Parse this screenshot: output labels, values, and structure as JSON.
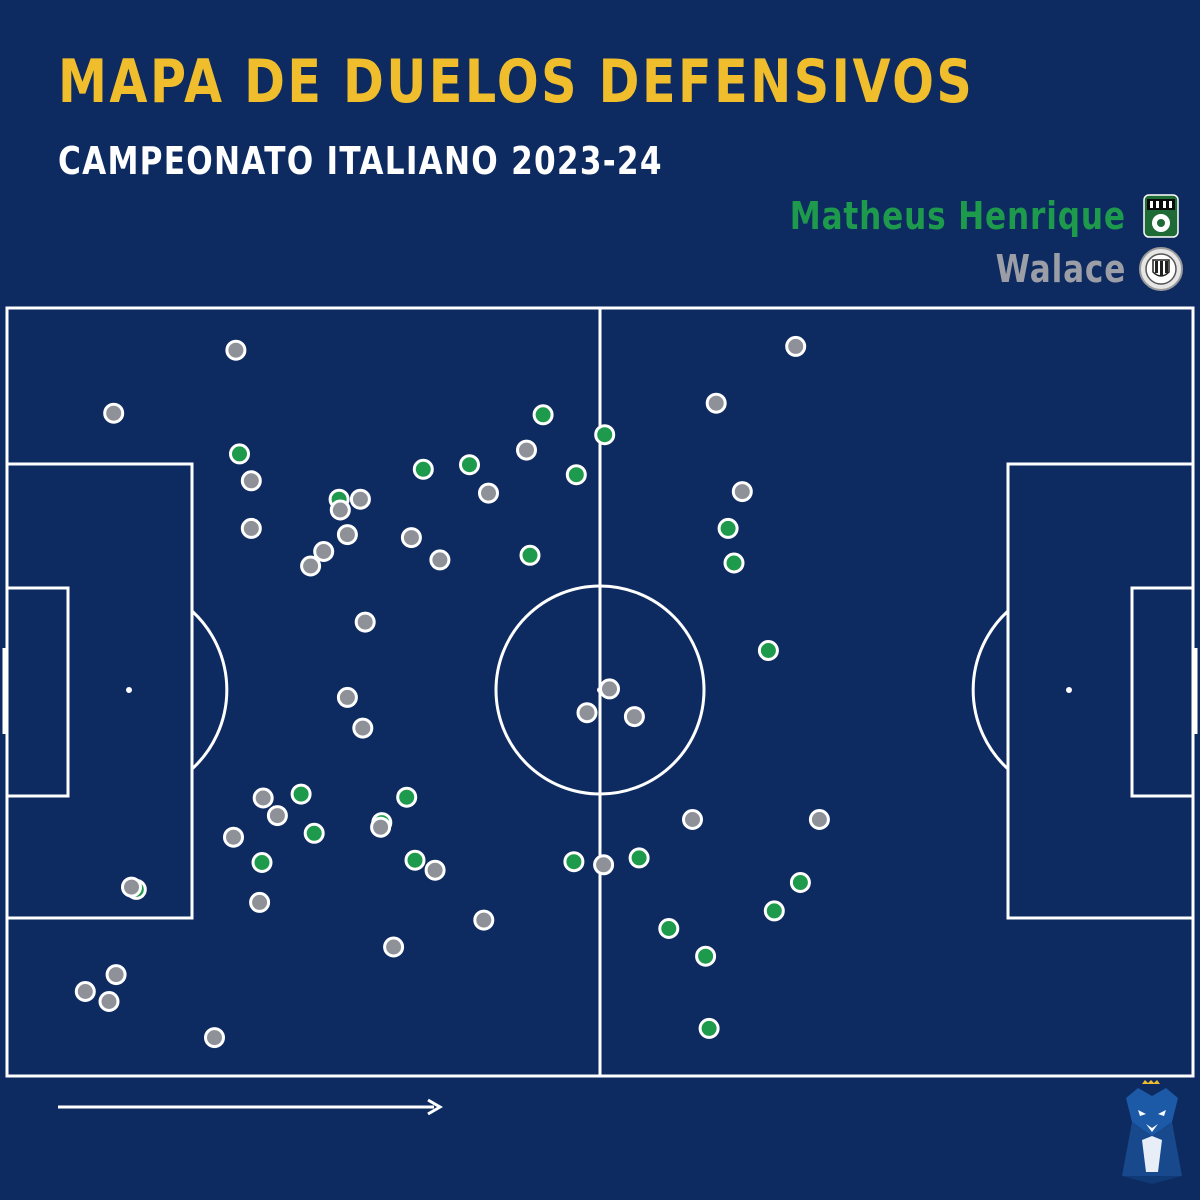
{
  "title": "MAPA DE DUELOS DEFENSIVOS",
  "subtitle": "CAMPEONATO ITALIANO 2023-24",
  "colors": {
    "background": "#0d2b60",
    "title": "#f0bd2c",
    "matheus": "#1e9a4c",
    "walace": "#8e9198",
    "lines": "#ffffff"
  },
  "icons": {
    "sassuolo_badge": "sassuolo-crest-icon",
    "udinese_badge": "udinese-crest-icon",
    "direction": "arrow-right-icon",
    "brand": "fox-mascot-icon"
  },
  "chart_data": {
    "type": "scatter",
    "title": "MAPA DE DUELOS DEFENSIVOS",
    "subtitle": "CAMPEONATO ITALIANO 2023-24",
    "legend_position": "top-right",
    "xlim": [
      0,
      100
    ],
    "ylim": [
      0,
      100
    ],
    "series": [
      {
        "name": "Matheus Henrique",
        "color": "#1e9a4c",
        "points": [
          [
            45.2,
            13.9
          ],
          [
            50.4,
            16.5
          ],
          [
            19.6,
            19.0
          ],
          [
            39.0,
            20.4
          ],
          [
            35.1,
            21.0
          ],
          [
            48.0,
            21.7
          ],
          [
            28.0,
            24.9
          ],
          [
            60.8,
            28.7
          ],
          [
            44.1,
            32.2
          ],
          [
            61.3,
            33.2
          ],
          [
            64.2,
            44.6
          ],
          [
            24.8,
            63.3
          ],
          [
            33.7,
            63.7
          ],
          [
            31.6,
            67.0
          ],
          [
            25.9,
            68.4
          ],
          [
            34.4,
            71.9
          ],
          [
            47.8,
            72.1
          ],
          [
            53.3,
            71.6
          ],
          [
            21.5,
            72.2
          ],
          [
            10.9,
            75.7
          ],
          [
            66.9,
            74.8
          ],
          [
            64.7,
            78.5
          ],
          [
            55.8,
            80.8
          ],
          [
            58.9,
            84.4
          ],
          [
            59.2,
            93.8
          ]
        ]
      },
      {
        "name": "Walace",
        "color": "#8e9198",
        "points": [
          [
            19.3,
            5.5
          ],
          [
            66.5,
            5.0
          ],
          [
            9.0,
            13.7
          ],
          [
            59.8,
            12.4
          ],
          [
            43.8,
            18.5
          ],
          [
            20.6,
            22.5
          ],
          [
            40.6,
            24.1
          ],
          [
            62.0,
            23.9
          ],
          [
            29.8,
            24.9
          ],
          [
            28.1,
            26.3
          ],
          [
            20.6,
            28.7
          ],
          [
            28.7,
            29.5
          ],
          [
            34.1,
            29.9
          ],
          [
            26.7,
            31.7
          ],
          [
            25.6,
            33.6
          ],
          [
            36.5,
            32.8
          ],
          [
            30.2,
            40.9
          ],
          [
            50.8,
            49.6
          ],
          [
            28.7,
            50.7
          ],
          [
            48.9,
            52.7
          ],
          [
            52.9,
            53.2
          ],
          [
            30.0,
            54.7
          ],
          [
            21.6,
            63.8
          ],
          [
            22.8,
            66.1
          ],
          [
            31.5,
            67.6
          ],
          [
            57.8,
            66.6
          ],
          [
            68.5,
            66.6
          ],
          [
            19.1,
            68.9
          ],
          [
            36.1,
            73.2
          ],
          [
            50.3,
            72.5
          ],
          [
            10.5,
            75.4
          ],
          [
            21.3,
            77.4
          ],
          [
            40.2,
            79.7
          ],
          [
            32.6,
            83.2
          ],
          [
            9.2,
            86.8
          ],
          [
            6.6,
            89.0
          ],
          [
            8.6,
            90.3
          ],
          [
            17.5,
            95.0
          ]
        ]
      }
    ]
  }
}
